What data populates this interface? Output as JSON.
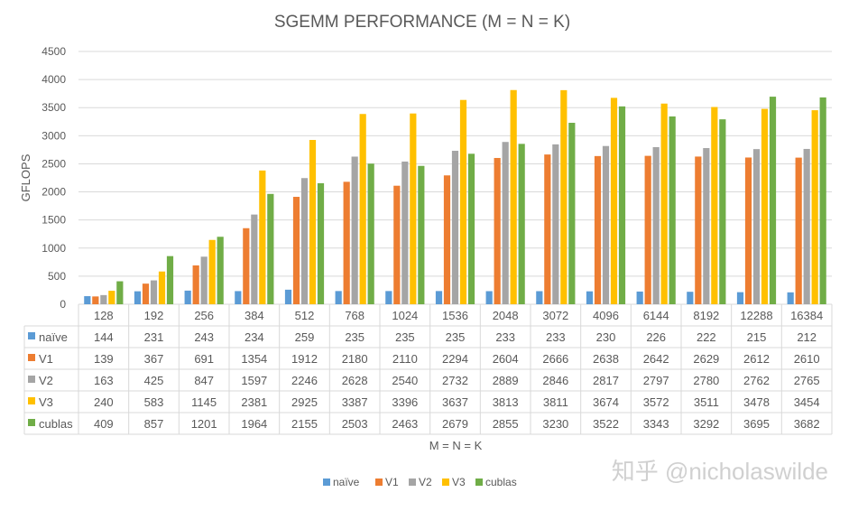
{
  "chart_data": {
    "type": "bar",
    "title": "SGEMM PERFORMANCE (M = N = K)",
    "xlabel": "M = N = K",
    "ylabel": "GFLOPS",
    "ylim": [
      0,
      4500
    ],
    "yticks": [
      0,
      500,
      1000,
      1500,
      2000,
      2500,
      3000,
      3500,
      4000,
      4500
    ],
    "grid": true,
    "legend_position": "bottom",
    "data_table": true,
    "categories": [
      "128",
      "192",
      "256",
      "384",
      "512",
      "768",
      "1024",
      "1536",
      "2048",
      "3072",
      "4096",
      "6144",
      "8192",
      "12288",
      "16384"
    ],
    "series": [
      {
        "name": "naïve",
        "color": "#5B9BD5",
        "values": [
          144,
          231,
          243,
          234,
          259,
          235,
          235,
          235,
          233,
          233,
          230,
          226,
          222,
          215,
          212
        ]
      },
      {
        "name": "V1",
        "color": "#ED7D31",
        "values": [
          139,
          367,
          691,
          1354,
          1912,
          2180,
          2110,
          2294,
          2604,
          2666,
          2638,
          2642,
          2629,
          2612,
          2610
        ]
      },
      {
        "name": "V2",
        "color": "#A5A5A5",
        "values": [
          163,
          425,
          847,
          1597,
          2246,
          2628,
          2540,
          2732,
          2889,
          2846,
          2817,
          2797,
          2780,
          2762,
          2765
        ]
      },
      {
        "name": "V3",
        "color": "#FFC000",
        "values": [
          240,
          583,
          1145,
          2381,
          2925,
          3387,
          3396,
          3637,
          3813,
          3811,
          3674,
          3572,
          3511,
          3478,
          3454
        ]
      },
      {
        "name": "cublas",
        "color": "#70AD47",
        "values": [
          409,
          857,
          1201,
          1964,
          2155,
          2503,
          2463,
          2679,
          2855,
          3230,
          3522,
          3343,
          3292,
          3695,
          3682
        ]
      }
    ]
  },
  "watermark": "知乎 @nicholaswilde"
}
